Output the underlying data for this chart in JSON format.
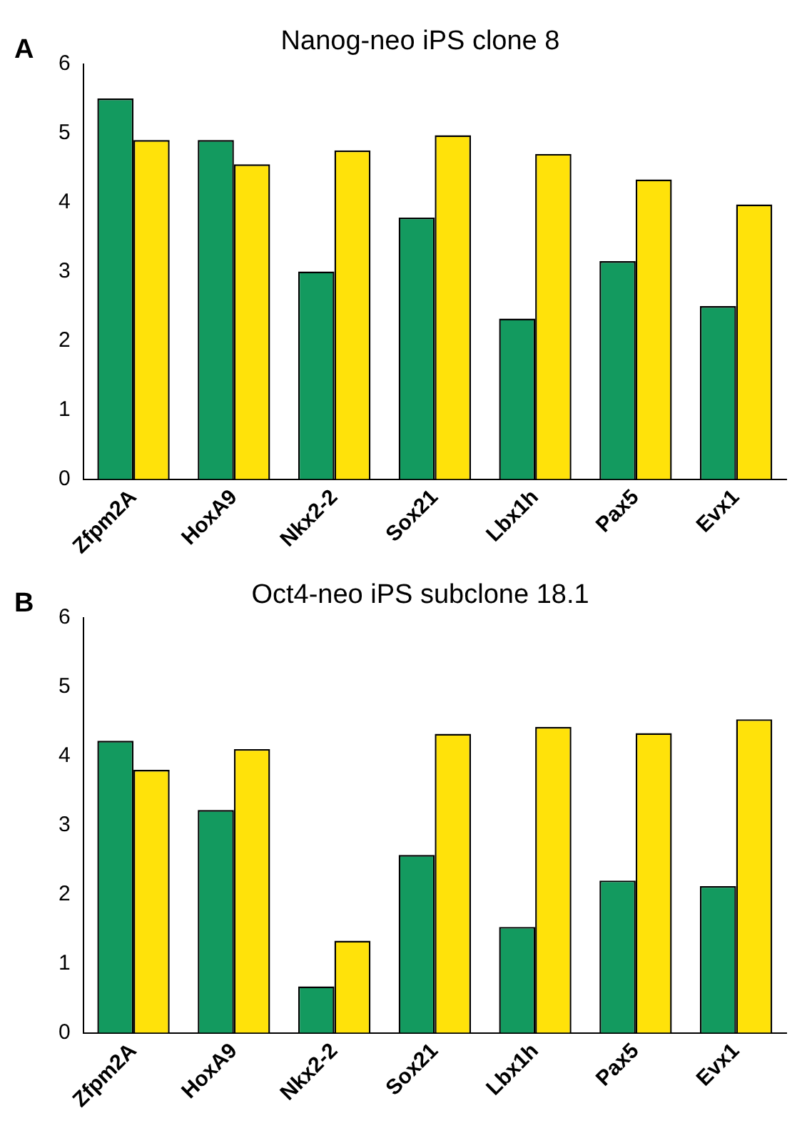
{
  "chart_data": [
    {
      "type": "bar",
      "title": "Nanog-neo iPS clone 8",
      "annotations": [
        "A"
      ],
      "categories": [
        "Zfpm2A",
        "HoxA9",
        "Nkx2-2",
        "Sox21",
        "Lbx1h",
        "Pax5",
        "Evx1"
      ],
      "series": [
        {
          "color": "#139a5f",
          "values": [
            5.5,
            4.9,
            3.0,
            3.78,
            2.32,
            3.15,
            2.5
          ]
        },
        {
          "color": "#ffe20a",
          "values": [
            4.9,
            4.55,
            4.75,
            4.97,
            4.7,
            4.33,
            3.97
          ]
        }
      ],
      "ylim": [
        0,
        6
      ],
      "yticks": [
        0,
        1,
        2,
        3,
        4,
        5,
        6
      ],
      "grid": false,
      "legend": false
    },
    {
      "type": "bar",
      "title": "Oct4-neo iPS subclone 18.1",
      "annotations": [
        "B"
      ],
      "categories": [
        "Zfpm2A",
        "HoxA9",
        "Nkx2-2",
        "Sox21",
        "Lbx1h",
        "Pax5",
        "Evx1"
      ],
      "series": [
        {
          "color": "#139a5f",
          "values": [
            4.22,
            3.22,
            0.67,
            2.57,
            1.53,
            2.2,
            2.12
          ]
        },
        {
          "color": "#ffe20a",
          "values": [
            3.8,
            4.1,
            1.33,
            4.32,
            4.42,
            4.33,
            4.53
          ]
        }
      ],
      "ylim": [
        0,
        6
      ],
      "yticks": [
        0,
        1,
        2,
        3,
        4,
        5,
        6
      ],
      "grid": false,
      "legend": false
    }
  ]
}
